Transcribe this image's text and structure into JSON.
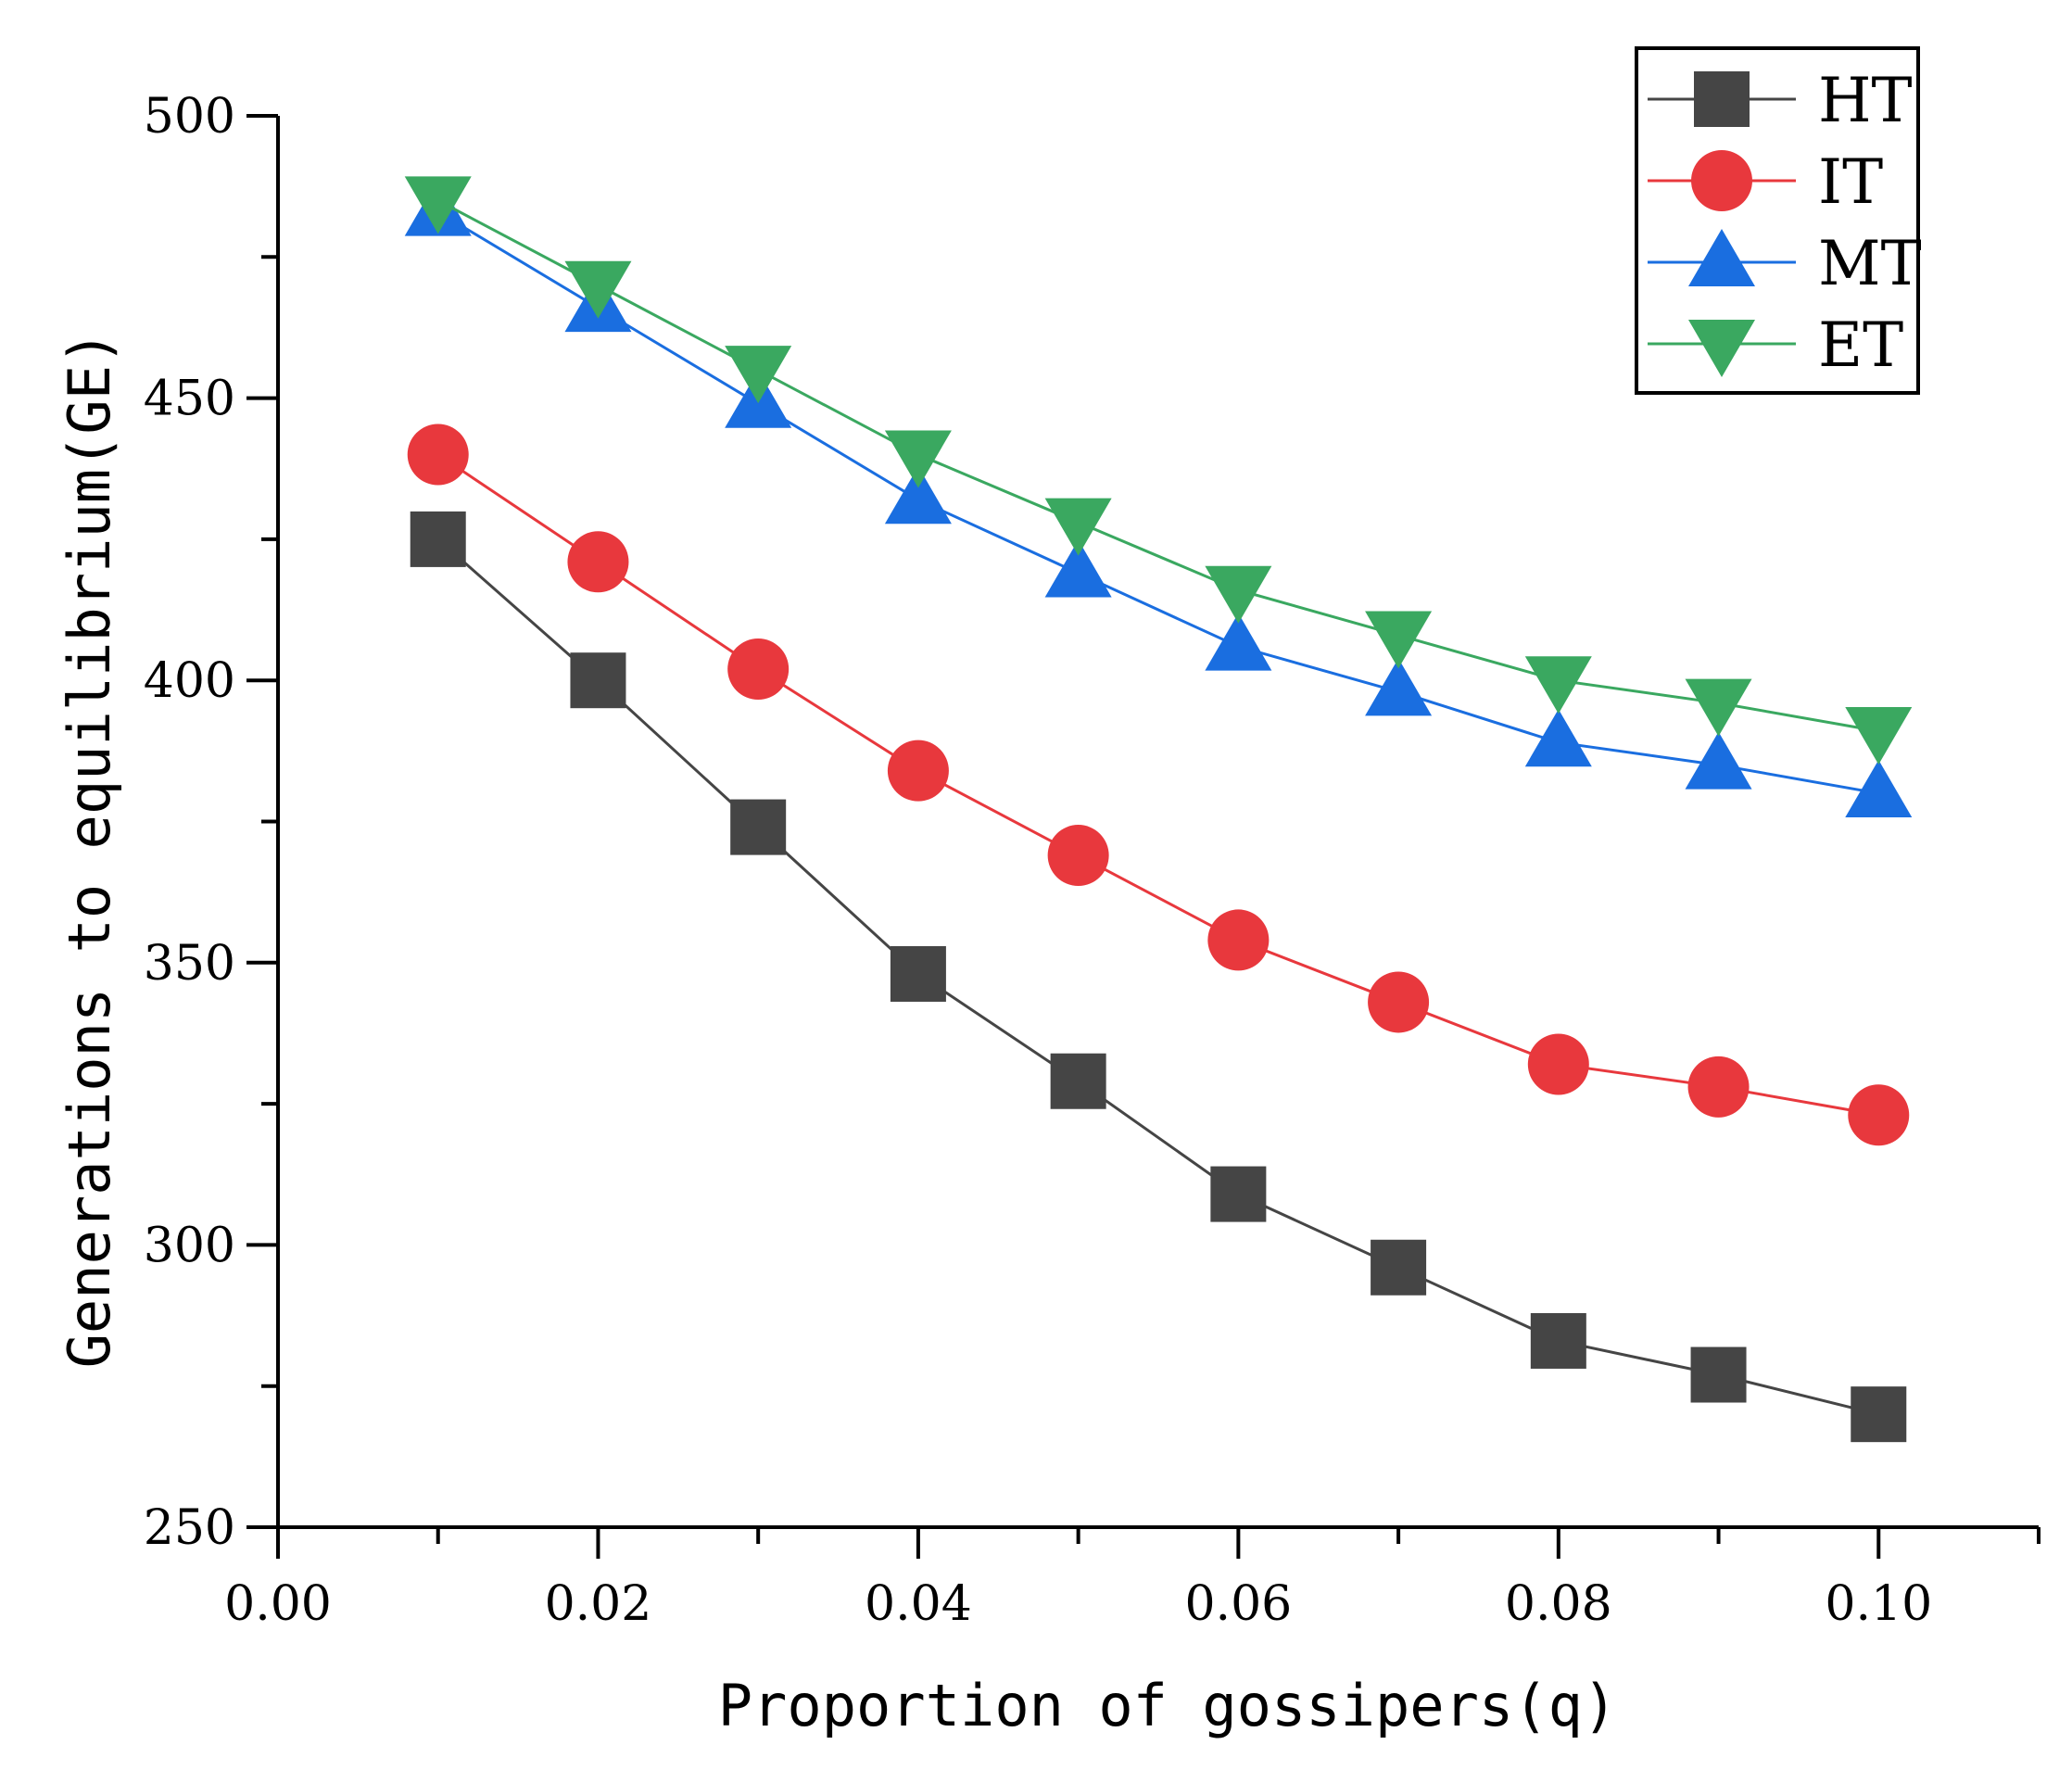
{
  "chart_data": {
    "type": "line",
    "title": "",
    "xlabel": "Proportion of gossipers(q)",
    "ylabel": "Generations to equilibrium(GE)",
    "xlim": [
      0,
      0.11
    ],
    "ylim": [
      250,
      500
    ],
    "xticks": [
      0.0,
      0.02,
      0.04,
      0.06,
      0.08,
      0.1
    ],
    "xtick_labels": [
      "0.00",
      "0.02",
      "0.04",
      "0.06",
      "0.08",
      "0.10"
    ],
    "yticks": [
      250,
      300,
      350,
      400,
      450,
      500
    ],
    "ytick_labels": [
      "250",
      "300",
      "350",
      "400",
      "450",
      "500"
    ],
    "x": [
      0.01,
      0.02,
      0.03,
      0.04,
      0.05,
      0.06,
      0.07,
      0.08,
      0.09,
      0.1
    ],
    "legend_position": "top-right",
    "grid": false,
    "series": [
      {
        "name": "HT",
        "color": "#454545",
        "marker": "square",
        "values": [
          425,
          400,
          374,
          348,
          329,
          309,
          296,
          283,
          277,
          270
        ]
      },
      {
        "name": "IT",
        "color": "#e8383d",
        "marker": "circle",
        "values": [
          440,
          421,
          402,
          384,
          369,
          354,
          343,
          332,
          328,
          323
        ]
      },
      {
        "name": "MT",
        "color": "#1a6ee0",
        "marker": "triangle-up",
        "values": [
          483,
          466,
          449,
          432,
          419,
          406,
          398,
          389,
          385,
          380
        ]
      },
      {
        "name": "ET",
        "color": "#3aa860",
        "marker": "triangle-down",
        "values": [
          485,
          470,
          455,
          440,
          428,
          416,
          408,
          400,
          396,
          391
        ]
      }
    ]
  }
}
